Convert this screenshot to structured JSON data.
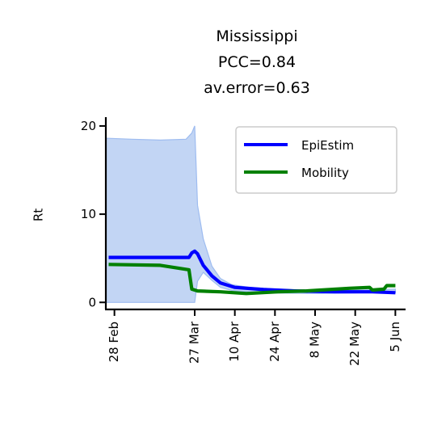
{
  "chart_data": {
    "type": "line",
    "title_lines": [
      "Mississippi",
      "PCC=0.84",
      "av.error=0.63"
    ],
    "xlabel": "",
    "ylabel": "Rt",
    "ylim": [
      -0.8,
      21
    ],
    "yticks": [
      0,
      10,
      20
    ],
    "xlim": [
      "2020-02-25",
      "2020-06-08"
    ],
    "xticks": [
      "2020-02-28",
      "2020-03-27",
      "2020-04-10",
      "2020-04-24",
      "2020-05-08",
      "2020-05-22",
      "2020-06-05"
    ],
    "xtick_labels": [
      "28 Feb",
      "27 Mar",
      "10 Apr",
      "24 Apr",
      "8 May",
      "22 May",
      "5 Jun"
    ],
    "grid": false,
    "legend_position": "top-right",
    "colors": {
      "epiestim": "#0000ff",
      "mobility": "#008000",
      "band": "#aec7f0"
    },
    "band": {
      "name": "EpiEstim interval",
      "x": [
        "2020-02-25",
        "2020-02-26",
        "2020-03-05",
        "2020-03-15",
        "2020-03-24",
        "2020-03-26",
        "2020-03-27",
        "2020-03-28",
        "2020-03-30",
        "2020-04-02",
        "2020-04-05",
        "2020-04-09",
        "2020-04-15",
        "2020-04-25",
        "2020-05-10",
        "2020-05-25",
        "2020-06-05"
      ],
      "lower": [
        0,
        0,
        0,
        0,
        0,
        0,
        0,
        2.4,
        3.4,
        2.5,
        1.7,
        1.35,
        1.2,
        1.05,
        1.0,
        1.1,
        1.1
      ],
      "upper": [
        18.6,
        18.6,
        18.5,
        18.4,
        18.5,
        19.2,
        20.0,
        11.0,
        7.2,
        4.1,
        2.7,
        2.0,
        1.7,
        1.5,
        1.3,
        1.4,
        1.5
      ]
    },
    "series": [
      {
        "name": "EpiEstim",
        "x": [
          "2020-02-26",
          "2020-03-25",
          "2020-03-26",
          "2020-03-27",
          "2020-03-28",
          "2020-03-30",
          "2020-04-02",
          "2020-04-05",
          "2020-04-10",
          "2020-04-20",
          "2020-05-01",
          "2020-05-15",
          "2020-05-28",
          "2020-06-05"
        ],
        "values": [
          5.1,
          5.1,
          5.6,
          5.8,
          5.5,
          4.2,
          3.0,
          2.2,
          1.7,
          1.45,
          1.3,
          1.2,
          1.2,
          1.1
        ]
      },
      {
        "name": "Mobility",
        "x": [
          "2020-02-26",
          "2020-03-15",
          "2020-03-25",
          "2020-03-26",
          "2020-03-28",
          "2020-04-05",
          "2020-04-14",
          "2020-04-25",
          "2020-05-05",
          "2020-05-20",
          "2020-05-27",
          "2020-05-28",
          "2020-06-01",
          "2020-06-02",
          "2020-06-05"
        ],
        "values": [
          4.3,
          4.2,
          3.7,
          1.5,
          1.3,
          1.2,
          1.0,
          1.2,
          1.3,
          1.6,
          1.7,
          1.4,
          1.5,
          1.9,
          1.9
        ]
      }
    ]
  }
}
